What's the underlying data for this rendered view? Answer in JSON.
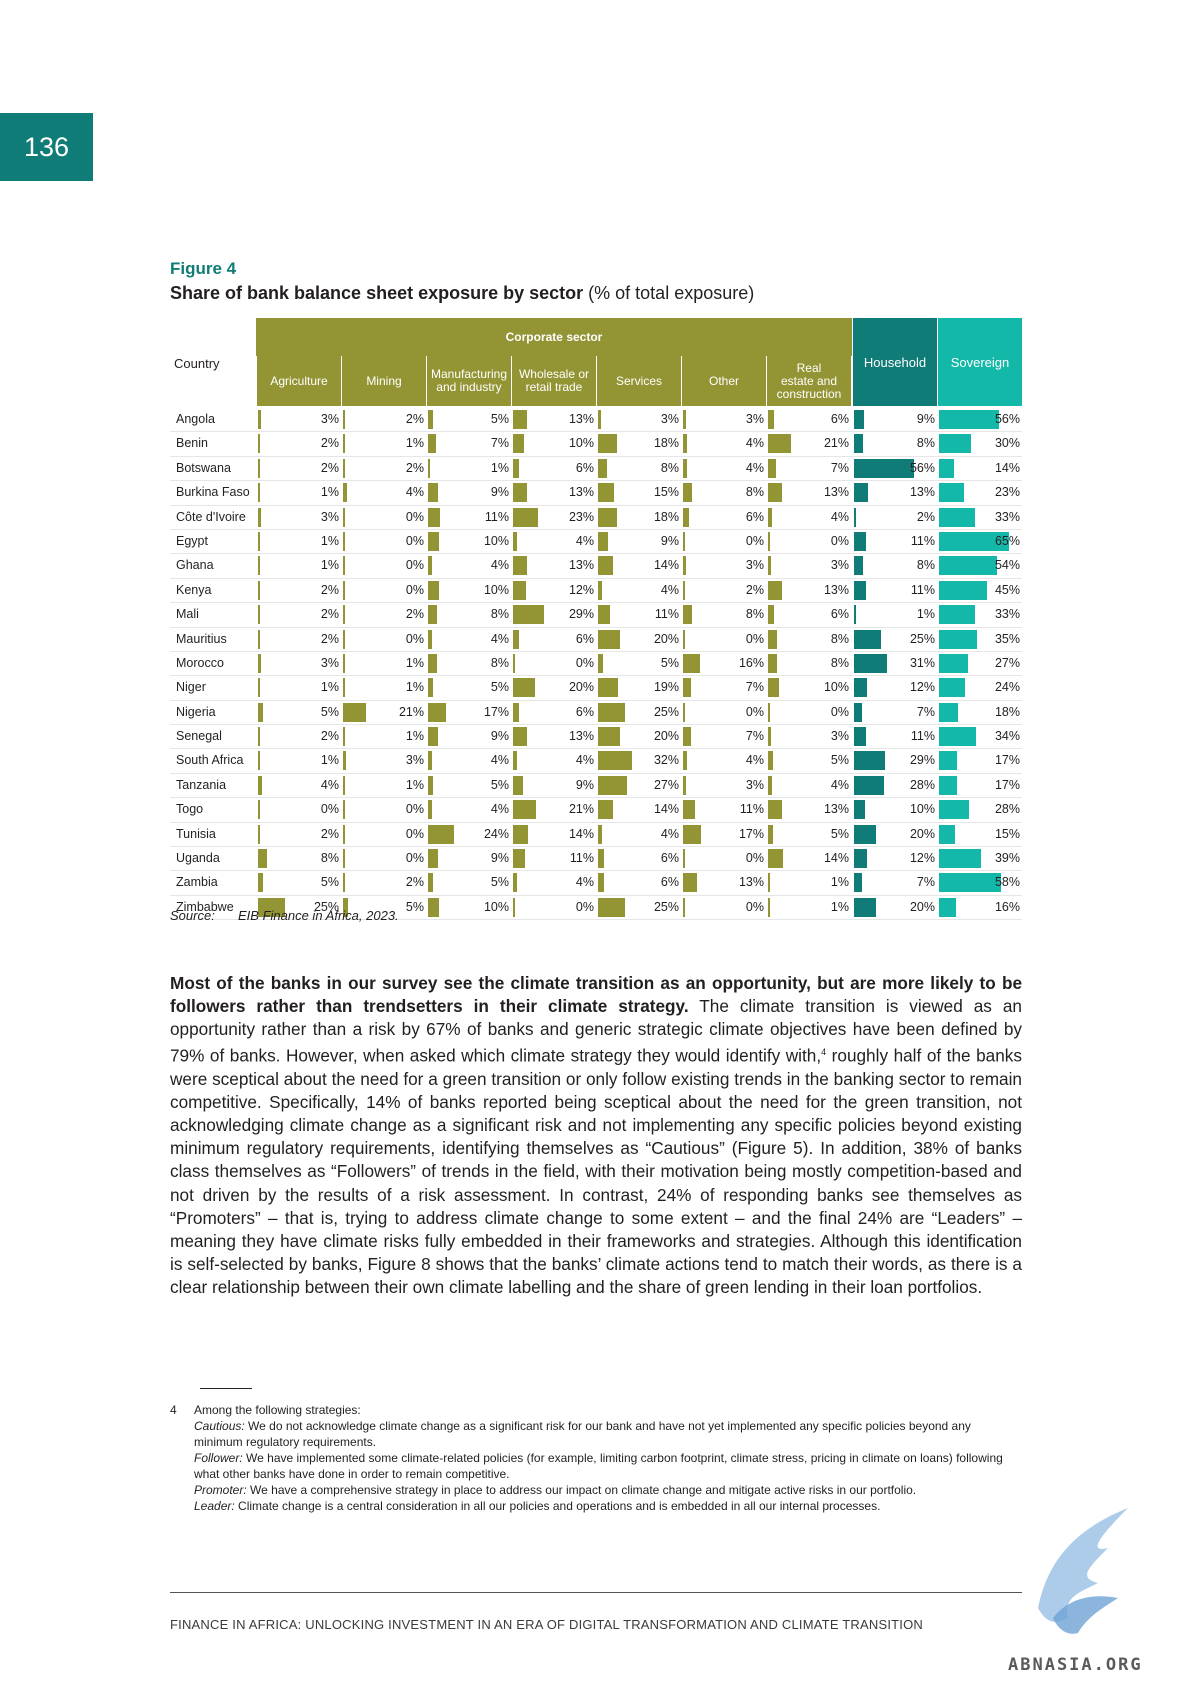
{
  "page_number": "136",
  "figure": {
    "label": "Figure 4",
    "title_bold": "Share of bank balance sheet exposure by sector",
    "title_rest": " (% of total exposure)"
  },
  "table": {
    "country_header": "Country",
    "group_header": "Corporate sector",
    "columns": [
      {
        "label": "Agriculture",
        "group": "corporate"
      },
      {
        "label": "Mining",
        "group": "corporate"
      },
      {
        "label": "Manufacturing\nand industry",
        "group": "corporate"
      },
      {
        "label": "Wholesale or\nretail trade",
        "group": "corporate"
      },
      {
        "label": "Services",
        "group": "corporate"
      },
      {
        "label": "Other",
        "group": "corporate"
      },
      {
        "label": "Real\nestate and\nconstruction",
        "group": "corporate"
      },
      {
        "label": "Household",
        "group": "household"
      },
      {
        "label": "Sovereign",
        "group": "sovereign"
      }
    ],
    "rows": [
      {
        "country": "Angola",
        "values": [
          3,
          2,
          5,
          13,
          3,
          3,
          6,
          9,
          56
        ]
      },
      {
        "country": "Benin",
        "values": [
          2,
          1,
          7,
          10,
          18,
          4,
          21,
          8,
          30
        ]
      },
      {
        "country": "Botswana",
        "values": [
          2,
          2,
          1,
          6,
          8,
          4,
          7,
          56,
          14
        ]
      },
      {
        "country": "Burkina Faso",
        "values": [
          1,
          4,
          9,
          13,
          15,
          8,
          13,
          13,
          23
        ]
      },
      {
        "country": "Côte d'Ivoire",
        "values": [
          3,
          0,
          11,
          23,
          18,
          6,
          4,
          2,
          33
        ]
      },
      {
        "country": "Egypt",
        "values": [
          1,
          0,
          10,
          4,
          9,
          0,
          0,
          11,
          65
        ]
      },
      {
        "country": "Ghana",
        "values": [
          1,
          0,
          4,
          13,
          14,
          3,
          3,
          8,
          54
        ]
      },
      {
        "country": "Kenya",
        "values": [
          2,
          0,
          10,
          12,
          4,
          2,
          13,
          11,
          45
        ]
      },
      {
        "country": "Mali",
        "values": [
          2,
          2,
          8,
          29,
          11,
          8,
          6,
          1,
          33
        ]
      },
      {
        "country": "Mauritius",
        "values": [
          2,
          0,
          4,
          6,
          20,
          0,
          8,
          25,
          35
        ]
      },
      {
        "country": "Morocco",
        "values": [
          3,
          1,
          8,
          0,
          5,
          16,
          8,
          31,
          27
        ]
      },
      {
        "country": "Niger",
        "values": [
          1,
          1,
          5,
          20,
          19,
          7,
          10,
          12,
          24
        ]
      },
      {
        "country": "Nigeria",
        "values": [
          5,
          21,
          17,
          6,
          25,
          0,
          0,
          7,
          18
        ]
      },
      {
        "country": "Senegal",
        "values": [
          2,
          1,
          9,
          13,
          20,
          7,
          3,
          11,
          34
        ]
      },
      {
        "country": "South Africa",
        "values": [
          1,
          3,
          4,
          4,
          32,
          4,
          5,
          29,
          17
        ]
      },
      {
        "country": "Tanzania",
        "values": [
          4,
          1,
          5,
          9,
          27,
          3,
          4,
          28,
          17
        ]
      },
      {
        "country": "Togo",
        "values": [
          0,
          0,
          4,
          21,
          14,
          11,
          13,
          10,
          28
        ]
      },
      {
        "country": "Tunisia",
        "values": [
          2,
          0,
          24,
          14,
          4,
          17,
          5,
          20,
          15
        ]
      },
      {
        "country": "Uganda",
        "values": [
          8,
          0,
          9,
          11,
          6,
          0,
          14,
          12,
          39
        ]
      },
      {
        "country": "Zambia",
        "values": [
          5,
          2,
          5,
          4,
          6,
          13,
          1,
          7,
          58
        ]
      },
      {
        "country": "Zimbabwe",
        "values": [
          25,
          5,
          10,
          0,
          25,
          0,
          1,
          20,
          16
        ]
      }
    ],
    "unit": "%",
    "colors": {
      "corporate": "#939534",
      "household": "#0f7c77",
      "sovereign": "#14b8a8"
    }
  },
  "source": {
    "label": "Source:",
    "text": "EIB Finance in Africa, 2023."
  },
  "body": {
    "lead_bold": "Most of the banks in our survey see the climate transition as an opportunity, but are more likely to be followers rather than trendsetters in their climate strategy.",
    "part1": " The climate transition is viewed as an opportunity rather than a risk by 67% of banks and generic strategic climate objectives have been defined by 79% of banks. However, when asked which climate strategy they would identify with,",
    "footnote_ref": "4",
    "part2": " roughly half of the banks were sceptical about the need for a green transition or only follow existing trends in the banking sector to remain competitive. Specifically, 14% of banks reported being sceptical about the need for the green transition, not acknowledging climate change as a significant risk and not implementing any specific policies beyond existing minimum regulatory requirements, identifying themselves as “Cautious” (Figure 5). In addition, 38% of banks class themselves as “Followers” of trends in the field, with their motivation being mostly competition-based and not driven by the results of a risk assessment. In contrast, 24% of responding banks see themselves as “Promoters” – that is, trying to address climate change to some extent – and the final 24% are “Leaders” – meaning they have climate risks fully embedded in their frameworks and strategies. Although this identification is self-selected by banks, Figure 8 shows that the banks’ climate actions tend to match their words, as there is a clear relationship between their own climate labelling and the share of green lending in their loan portfolios."
  },
  "footnote": {
    "number": "4",
    "intro": "Among the following strategies:",
    "items": [
      {
        "term": "Cautious:",
        "text": " We do not acknowledge climate change as a significant risk for our bank and have not yet implemented any specific policies beyond any minimum regulatory requirements."
      },
      {
        "term": "Follower:",
        "text": " We have implemented some climate-related policies (for example, limiting carbon footprint, climate stress, pricing in climate on loans) following what other banks have done in order to remain competitive."
      },
      {
        "term": "Promoter:",
        "text": " We have a comprehensive strategy in place to address our impact on climate change and mitigate active risks in our portfolio."
      },
      {
        "term": "Leader:",
        "text": " Climate change is a central consideration in all our policies and operations and is embedded in all our internal processes."
      }
    ]
  },
  "running_footer": "FINANCE IN AFRICA: UNLOCKING INVESTMENT IN AN ERA OF DIGITAL TRANSFORMATION AND CLIMATE TRANSITION",
  "watermark": "ABNASIA.ORG"
}
